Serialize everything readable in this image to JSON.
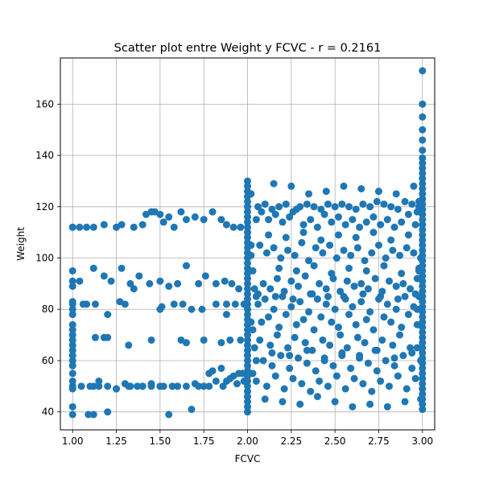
{
  "chart_data": {
    "type": "scatter",
    "title": "Scatter plot entre Weight y FCVC - r = 0.2161",
    "xlabel": "FCVC",
    "ylabel": "Weight",
    "xlim": [
      0.93,
      3.07
    ],
    "ylim": [
      33,
      178
    ],
    "x_ticks": [
      "1.00",
      "1.25",
      "1.50",
      "1.75",
      "2.00",
      "2.25",
      "2.50",
      "2.75",
      "3.00"
    ],
    "y_ticks": [
      "40",
      "60",
      "80",
      "100",
      "120",
      "140",
      "160"
    ],
    "grid": true,
    "marker_color": "#1f77b4",
    "x": [
      1.0,
      1.0,
      1.0,
      1.0,
      1.0,
      1.0,
      1.0,
      1.0,
      1.0,
      1.0,
      1.0,
      1.0,
      1.0,
      1.0,
      1.0,
      1.0,
      1.0,
      1.0,
      1.0,
      1.0,
      1.0,
      1.0,
      1.0,
      1.0,
      1.04,
      1.08,
      1.12,
      1.18,
      1.25,
      1.28,
      1.35,
      1.4,
      1.42,
      1.45,
      1.47,
      1.5,
      1.52,
      1.55,
      1.58,
      1.62,
      1.65,
      1.7,
      1.75,
      1.8,
      1.85,
      1.88,
      1.92,
      1.96,
      1.05,
      1.1,
      1.12,
      1.15,
      1.2,
      1.25,
      1.3,
      1.33,
      1.37,
      1.4,
      1.45,
      1.5,
      1.52,
      1.57,
      1.6,
      1.65,
      1.7,
      1.75,
      1.78,
      1.82,
      1.86,
      1.9,
      1.94,
      1.97,
      1.12,
      1.15,
      1.2,
      1.25,
      1.32,
      1.4,
      1.45,
      1.55,
      1.6,
      1.68,
      1.72,
      1.78,
      1.8,
      1.85,
      1.88,
      1.92,
      1.95,
      1.98,
      1.04,
      1.08,
      1.13,
      1.18,
      1.22,
      1.28,
      1.33,
      1.38,
      1.44,
      1.5,
      1.55,
      1.6,
      1.65,
      1.72,
      1.76,
      1.82,
      1.87,
      1.91,
      1.95,
      1.13,
      1.18,
      1.32,
      1.45,
      1.62,
      1.75,
      1.85,
      1.9,
      1.96,
      1.06,
      1.12,
      1.2,
      1.27,
      1.3,
      1.35,
      1.5,
      1.58,
      1.63,
      1.68,
      1.74,
      1.82,
      1.88,
      1.93,
      1.98,
      1.09,
      1.2,
      1.51,
      1.65,
      1.88,
      2.0,
      2.0,
      2.0,
      2.0,
      2.0,
      2.0,
      2.0,
      2.0,
      2.0,
      2.0,
      2.0,
      2.0,
      2.0,
      2.0,
      2.0,
      2.0,
      2.0,
      2.0,
      2.0,
      2.0,
      2.0,
      2.0,
      2.0,
      2.0,
      2.0,
      2.0,
      2.0,
      2.0,
      2.0,
      2.0,
      2.0,
      2.0,
      2.0,
      2.0,
      2.0,
      2.0,
      2.0,
      2.0,
      2.0,
      2.0,
      2.0,
      2.0,
      2.0,
      2.0,
      2.0,
      2.0,
      2.02,
      2.03,
      2.05,
      2.02,
      2.04,
      2.03,
      2.05,
      2.02,
      2.04,
      2.03,
      2.05,
      2.02,
      2.06,
      2.1,
      2.14,
      2.18,
      2.22,
      2.26,
      2.3,
      2.34,
      2.38,
      2.42,
      2.46,
      2.5,
      2.54,
      2.58,
      2.62,
      2.66,
      2.7,
      2.74,
      2.78,
      2.82,
      2.86,
      2.9,
      2.94,
      2.08,
      2.12,
      2.16,
      2.2,
      2.24,
      2.28,
      2.32,
      2.36,
      2.4,
      2.44,
      2.48,
      2.52,
      2.56,
      2.6,
      2.64,
      2.68,
      2.72,
      2.76,
      2.8,
      2.84,
      2.88,
      2.92,
      2.96,
      2.07,
      2.11,
      2.15,
      2.19,
      2.23,
      2.27,
      2.31,
      2.35,
      2.39,
      2.43,
      2.47,
      2.51,
      2.55,
      2.59,
      2.63,
      2.67,
      2.71,
      2.75,
      2.79,
      2.83,
      2.87,
      2.91,
      2.95,
      2.09,
      2.13,
      2.17,
      2.21,
      2.25,
      2.29,
      2.33,
      2.37,
      2.41,
      2.45,
      2.49,
      2.53,
      2.57,
      2.61,
      2.65,
      2.69,
      2.73,
      2.77,
      2.81,
      2.85,
      2.89,
      2.93,
      2.97,
      2.06,
      2.1,
      2.15,
      2.2,
      2.25,
      2.3,
      2.35,
      2.4,
      2.45,
      2.5,
      2.55,
      2.6,
      2.65,
      2.7,
      2.75,
      2.8,
      2.85,
      2.9,
      2.95,
      2.08,
      2.12,
      2.18,
      2.22,
      2.28,
      2.32,
      2.38,
      2.42,
      2.48,
      2.52,
      2.58,
      2.62,
      2.68,
      2.72,
      2.78,
      2.82,
      2.88,
      2.92,
      2.97,
      2.07,
      2.13,
      2.17,
      2.23,
      2.27,
      2.33,
      2.37,
      2.43,
      2.47,
      2.53,
      2.57,
      2.63,
      2.67,
      2.73,
      2.77,
      2.83,
      2.87,
      2.93,
      2.09,
      2.14,
      2.19,
      2.24,
      2.29,
      2.34,
      2.39,
      2.44,
      2.49,
      2.54,
      2.59,
      2.64,
      2.69,
      2.74,
      2.79,
      2.84,
      2.89,
      2.94,
      2.05,
      2.11,
      2.16,
      2.21,
      2.26,
      2.31,
      2.36,
      2.41,
      2.46,
      2.51,
      2.56,
      2.61,
      2.66,
      2.71,
      2.76,
      2.81,
      2.86,
      2.91,
      2.96,
      2.1,
      2.2,
      2.3,
      2.4,
      2.5,
      2.6,
      2.7,
      2.8,
      2.9,
      2.15,
      2.25,
      2.35,
      2.45,
      2.55,
      2.65,
      2.75,
      2.85,
      2.95,
      2.12,
      2.22,
      2.32,
      2.42,
      2.52,
      2.62,
      2.72,
      2.82,
      2.92,
      2.18,
      2.28,
      2.38,
      2.48,
      2.58,
      2.68,
      2.78,
      2.88,
      2.98,
      2.14,
      2.24,
      2.34,
      2.44,
      2.54,
      2.64,
      2.74,
      2.84,
      2.94,
      2.06,
      2.16,
      2.26,
      2.36,
      2.46,
      2.56,
      2.66,
      2.76,
      2.86,
      2.96,
      3.0,
      3.0,
      3.0,
      3.0,
      3.0,
      3.0,
      3.0,
      3.0,
      3.0,
      3.0,
      3.0,
      3.0,
      3.0,
      3.0,
      3.0,
      3.0,
      3.0,
      3.0,
      3.0,
      3.0,
      3.0,
      3.0,
      3.0,
      3.0,
      3.0,
      3.0,
      3.0,
      3.0,
      3.0,
      3.0,
      3.0,
      3.0,
      3.0,
      3.0,
      3.0,
      3.0,
      3.0,
      3.0,
      3.0,
      3.0,
      3.0,
      3.0,
      3.0,
      3.0,
      3.0,
      3.0,
      3.0,
      3.0,
      3.0,
      3.0,
      3.0,
      3.0,
      3.0,
      3.0,
      3.0,
      3.0,
      2.98,
      2.97,
      2.99,
      2.98,
      2.97,
      2.99,
      2.98,
      2.97,
      2.99,
      2.98
    ],
    "y": [
      39,
      42,
      49,
      50,
      52,
      55,
      58,
      60,
      62,
      64,
      66,
      68,
      70,
      72,
      74,
      78,
      80,
      82,
      83,
      89,
      91,
      95,
      112,
      112,
      112,
      112,
      112,
      113,
      112,
      113,
      112,
      113,
      117,
      118,
      118,
      117,
      114,
      116,
      112,
      118,
      115,
      116,
      115,
      118,
      115,
      113,
      112,
      112,
      50,
      50,
      50,
      50,
      50,
      49,
      51,
      50,
      50,
      50,
      51,
      50,
      50,
      50,
      50,
      50,
      51,
      50,
      50,
      52,
      50,
      53,
      51,
      55,
      39,
      52,
      40,
      49,
      50,
      50,
      50,
      39,
      50,
      41,
      50,
      55,
      56,
      57,
      52,
      54,
      55,
      52,
      91,
      82,
      82,
      93,
      91,
      96,
      90,
      93,
      90,
      91,
      89,
      90,
      97,
      90,
      93,
      90,
      91,
      90,
      88,
      69,
      69,
      66,
      68,
      68,
      68,
      67,
      68,
      68,
      82,
      96,
      78,
      83,
      82,
      88,
      80,
      82,
      82,
      80,
      80,
      82,
      82,
      82,
      82,
      39,
      69,
      81,
      67,
      78,
      40,
      42,
      44,
      46,
      48,
      50,
      52,
      54,
      56,
      58,
      60,
      62,
      64,
      66,
      68,
      70,
      72,
      74,
      76,
      78,
      80,
      82,
      84,
      86,
      88,
      90,
      92,
      94,
      96,
      98,
      100,
      102,
      104,
      106,
      108,
      110,
      112,
      114,
      116,
      118,
      120,
      122,
      124,
      126,
      128,
      130,
      105,
      95,
      85,
      75,
      65,
      55,
      115,
      125,
      88,
      72,
      60,
      101,
      120,
      121,
      119,
      120,
      121,
      118,
      120,
      121,
      120,
      119,
      121,
      120,
      121,
      120,
      119,
      121,
      120,
      122,
      121,
      120,
      119,
      122,
      121,
      118,
      115,
      117,
      114,
      116,
      119,
      113,
      115,
      112,
      117,
      114,
      116,
      113,
      115,
      112,
      114,
      116,
      113,
      115,
      112,
      114,
      117,
      113,
      105,
      102,
      104,
      100,
      103,
      101,
      106,
      99,
      104,
      102,
      105,
      100,
      103,
      101,
      104,
      99,
      102,
      105,
      100,
      103,
      101,
      104,
      102,
      90,
      88,
      92,
      87,
      91,
      89,
      93,
      86,
      90,
      88,
      92,
      87,
      91,
      89,
      90,
      88,
      92,
      87,
      91,
      89,
      90,
      88,
      92,
      82,
      84,
      80,
      85,
      81,
      83,
      79,
      84,
      82,
      80,
      85,
      81,
      83,
      79,
      84,
      82,
      80,
      85,
      81,
      75,
      77,
      73,
      78,
      74,
      76,
      72,
      77,
      75,
      73,
      78,
      74,
      76,
      72,
      77,
      75,
      73,
      78,
      74,
      68,
      66,
      70,
      65,
      69,
      67,
      64,
      68,
      66,
      70,
      65,
      69,
      67,
      64,
      68,
      66,
      70,
      65,
      60,
      58,
      62,
      57,
      61,
      59,
      56,
      60,
      58,
      62,
      57,
      61,
      59,
      56,
      60,
      58,
      62,
      57,
      52,
      50,
      54,
      49,
      53,
      51,
      48,
      52,
      50,
      54,
      49,
      53,
      51,
      48,
      52,
      50,
      54,
      49,
      53,
      45,
      44,
      43,
      46,
      44,
      42,
      43,
      42,
      44,
      129,
      128,
      125,
      126,
      128,
      127,
      126,
      125,
      128,
      109,
      108,
      110,
      107,
      109,
      108,
      110,
      107,
      109,
      96,
      95,
      97,
      94,
      96,
      95,
      97,
      94,
      96,
      63,
      62,
      64,
      61,
      63,
      62,
      64,
      61,
      63,
      86,
      85,
      84,
      86,
      85,
      84,
      86,
      85,
      84,
      86,
      41,
      43,
      45,
      47,
      49,
      51,
      53,
      55,
      57,
      59,
      61,
      63,
      65,
      67,
      69,
      71,
      73,
      75,
      77,
      79,
      81,
      83,
      85,
      87,
      89,
      91,
      93,
      95,
      97,
      99,
      101,
      103,
      105,
      107,
      109,
      111,
      113,
      115,
      117,
      119,
      121,
      123,
      125,
      127,
      129,
      131,
      133,
      135,
      137,
      139,
      142,
      146,
      150,
      155,
      160,
      173,
      120,
      118,
      100,
      85,
      65,
      45,
      122,
      80,
      60,
      95
    ]
  }
}
